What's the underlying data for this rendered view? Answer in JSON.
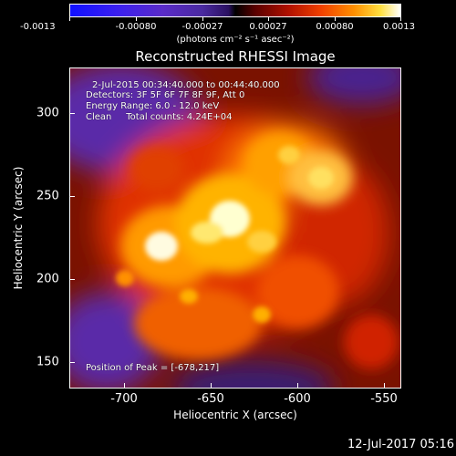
{
  "colorbar": {
    "tick_labels": [
      "-0.0013",
      "-0.00080",
      "-0.00027",
      "0.00027",
      "0.00080",
      "0.0013"
    ],
    "units": "(photons cm⁻² s⁻¹ asec⁻²)"
  },
  "title": "Reconstructed RHESSI Image",
  "info": {
    "time_range": "2-Jul-2015 00:34:40.000 to 00:44:40.000",
    "detectors": "Detectors: 3F 5F 6F 7F 8F 9F, Att 0",
    "energy": "Energy Range: 6.0 - 12.0 keV",
    "clean": "Clean     Total counts: 4.24E+04",
    "peak": "Position of Peak = [-678,217]"
  },
  "axes": {
    "xlabel": "Heliocentric X (arcsec)",
    "ylabel": "Heliocentric Y (arcsec)",
    "x_ticks": [
      "-700",
      "-650",
      "-600",
      "-550"
    ],
    "y_ticks": [
      "300",
      "250",
      "200",
      "150"
    ],
    "x_range": [
      -737,
      -546
    ],
    "y_range": [
      130,
      332
    ]
  },
  "date_stamp": "12-Jul-2017 05:16",
  "colors": {
    "background": "#000000",
    "text": "#ffffff"
  }
}
